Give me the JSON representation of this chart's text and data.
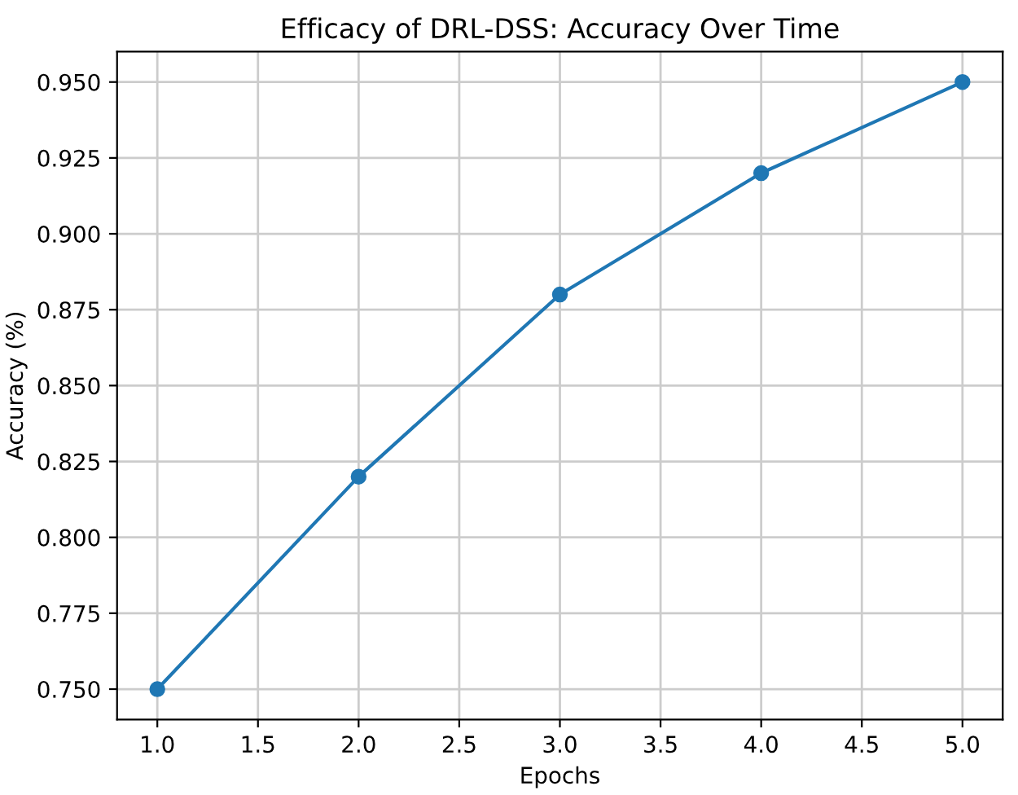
{
  "chart_data": {
    "type": "line",
    "title": "Efficacy of DRL-DSS: Accuracy Over Time",
    "xlabel": "Epochs",
    "ylabel": "Accuracy (%)",
    "x": [
      1,
      2,
      3,
      4,
      5
    ],
    "series": [
      {
        "color": "#1f77b4",
        "values": [
          0.75,
          0.82,
          0.88,
          0.92,
          0.95
        ]
      }
    ],
    "xlim": [
      0.8,
      5.2
    ],
    "xticks": [
      {
        "value": 1,
        "label": "1.0"
      },
      {
        "value": 1.5,
        "label": "1.5"
      },
      {
        "value": 2,
        "label": "2.0"
      },
      {
        "value": 2.5,
        "label": "2.5"
      },
      {
        "value": 3,
        "label": "3.0"
      },
      {
        "value": 3.5,
        "label": "3.5"
      },
      {
        "value": 4,
        "label": "4.0"
      },
      {
        "value": 4.5,
        "label": "4.5"
      },
      {
        "value": 5,
        "label": "5.0"
      }
    ],
    "ylim": [
      0.74,
      0.96
    ],
    "yticks": [
      {
        "value": 0.75,
        "label": "0.750"
      },
      {
        "value": 0.775,
        "label": "0.775"
      },
      {
        "value": 0.8,
        "label": "0.800"
      },
      {
        "value": 0.825,
        "label": "0.825"
      },
      {
        "value": 0.85,
        "label": "0.850"
      },
      {
        "value": 0.875,
        "label": "0.875"
      },
      {
        "value": 0.9,
        "label": "0.900"
      },
      {
        "value": 0.925,
        "label": "0.925"
      },
      {
        "value": 0.95,
        "label": "0.950"
      }
    ],
    "grid": true,
    "marker": "circle",
    "line_style": "solid"
  }
}
